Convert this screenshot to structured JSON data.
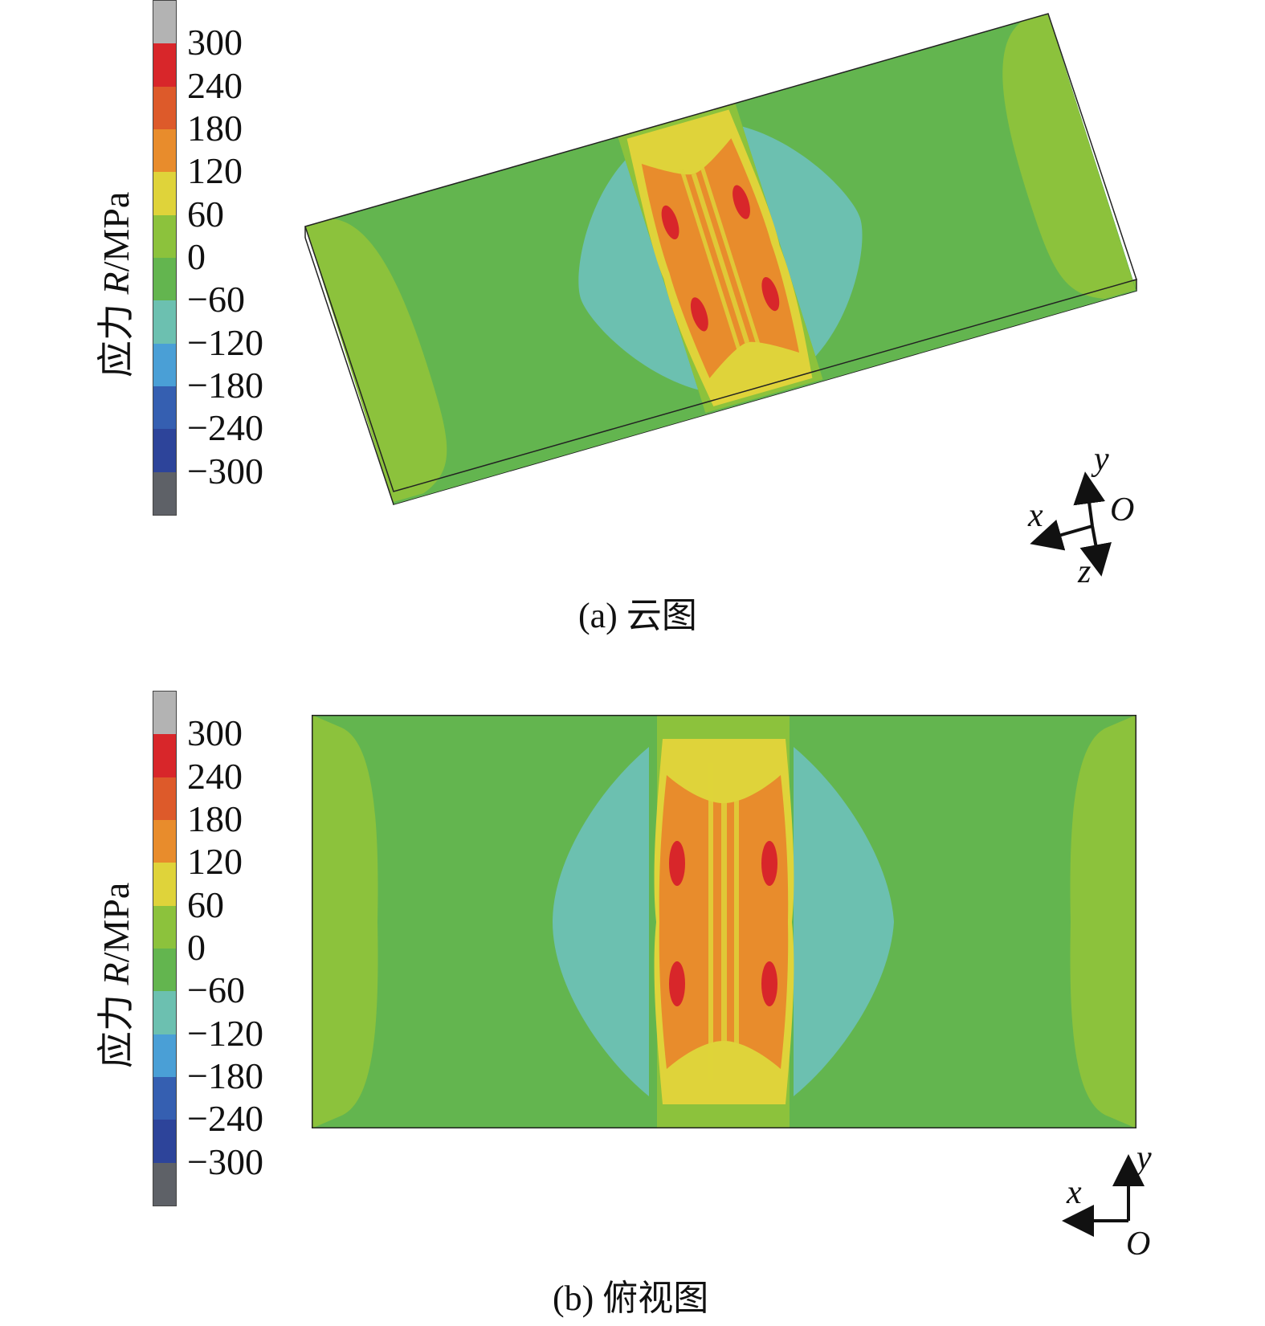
{
  "colorbar": {
    "title_prefix": "应力 ",
    "title_symbol": "R",
    "title_unit": "/MPa",
    "labels": [
      "300",
      "240",
      "180",
      "120",
      "60",
      "0",
      "−60",
      "−120",
      "−180",
      "−240",
      "−300"
    ],
    "colors": [
      "#b3b3b3",
      "#d8262a",
      "#dd5a2a",
      "#e88c2c",
      "#dfd33a",
      "#8cc23c",
      "#63b54f",
      "#6cc0b0",
      "#4a9fd6",
      "#355fb1",
      "#2d449a",
      "#5e6167"
    ]
  },
  "panel_a": {
    "caption": "(a) 云图",
    "axes": {
      "x": "x",
      "y": "y",
      "z": "z",
      "origin": "O"
    }
  },
  "panel_b": {
    "caption": "(b) 俯视图",
    "axes": {
      "x": "x",
      "y": "y",
      "origin": "O"
    }
  }
}
